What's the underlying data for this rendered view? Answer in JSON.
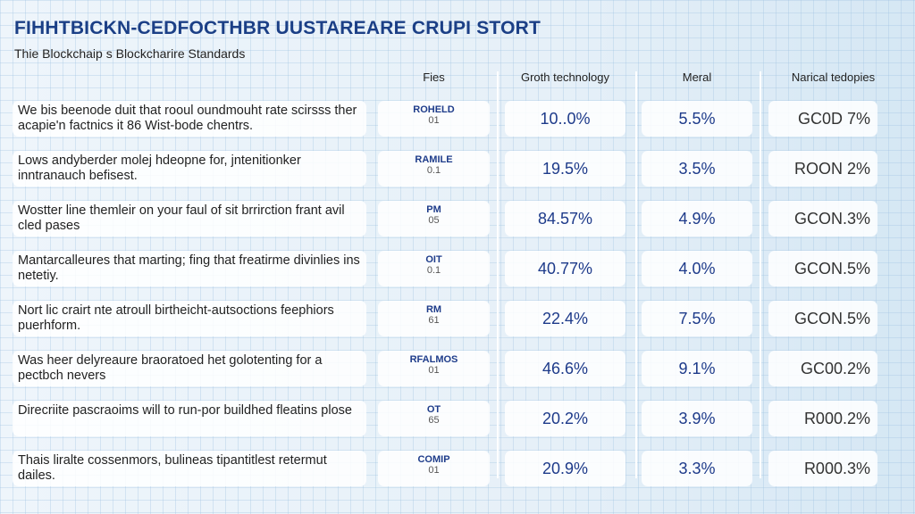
{
  "title": "FIHHTBICKN-CEDFOCTHBR UUSTAREARE CRUPI STORT",
  "subtitle": "Thie Blockchaip s Blockcharire Standards",
  "headers": {
    "fies": "Fies",
    "growth": "Groth technology",
    "meral": "Meral",
    "narical": "Narical tedopies"
  },
  "rows": [
    {
      "desc": "We bis beenode duit that rooul oundmouht rate scirsss ther acapie'n factnics it 86 Wist-bode chentrs.",
      "code": "ROHELD",
      "num": "01",
      "growth": "10..0%",
      "meral": "5.5%",
      "narical": "GC0D 7%"
    },
    {
      "desc": "Lows andyberder molej hdeopne for, jntenitionker inntranauch befisest.",
      "code": "RAMILE",
      "num": "0.1",
      "growth": "19.5%",
      "meral": "3.5%",
      "narical": "ROON 2%"
    },
    {
      "desc": "Wostter line themleir on your faul of sit brrirction frant avil cled pases",
      "code": "PM",
      "num": "05",
      "growth": "84.57%",
      "meral": "4.9%",
      "narical": "GCON.3%"
    },
    {
      "desc": "Mantarcalleures that marting; fing that freatirme divinlies ins netetiy.",
      "code": "OIT",
      "num": "0.1",
      "growth": "40.77%",
      "meral": "4.0%",
      "narical": "GCON.5%"
    },
    {
      "desc": "Nort lic crairt nte atroull birtheicht-autsoctions feephiors puerhform.",
      "code": "RM",
      "num": "61",
      "growth": "22.4%",
      "meral": "7.5%",
      "narical": "GCON.5%"
    },
    {
      "desc": "Was heer delyreaure braoratoed het golotenting for a pectbch nevers",
      "code": "RFALMOS",
      "num": "01",
      "growth": "46.6%",
      "meral": "9.1%",
      "narical": "GC00.2%"
    },
    {
      "desc": "Direcriite pascraoims will to run-por buildhed fleatins plose",
      "code": "OT",
      "num": "65",
      "growth": "20.2%",
      "meral": "3.9%",
      "narical": "R000.2%"
    },
    {
      "desc": "Thais liralte cossenmors, bulineas tipantitlest retermut dailes.",
      "code": "COMIP",
      "num": "01",
      "growth": "20.9%",
      "meral": "3.3%",
      "narical": "R000.3%"
    }
  ]
}
